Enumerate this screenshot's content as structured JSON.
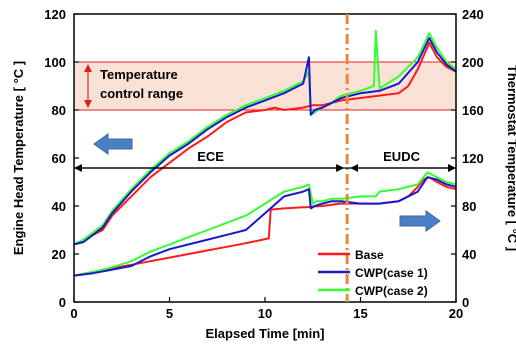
{
  "chart_data": {
    "type": "line",
    "xlabel": "Elapsed Time [min]",
    "ylabel_left": "Engine Head Temperature [ °C ]",
    "ylabel_right": "Thermostat Temperature [ °C ]",
    "xlim": [
      0,
      20
    ],
    "ylim_left": [
      0,
      120
    ],
    "ylim_right": [
      0,
      240
    ],
    "x_ticks": [
      "0",
      "5",
      "10",
      "15",
      "20"
    ],
    "y_ticks_left": [
      "0",
      "20",
      "40",
      "60",
      "80",
      "100",
      "120"
    ],
    "y_ticks_right": [
      "0",
      "40",
      "80",
      "120",
      "160",
      "200",
      "240"
    ],
    "legend_position": "lower-right",
    "grid": false,
    "control_range": {
      "label_line1": "Temperature",
      "label_line2": "control range",
      "low": 80,
      "high": 100,
      "color": "#f9e1d6"
    },
    "phases": [
      {
        "label": "ECE",
        "start": 0,
        "end": 14.3
      },
      {
        "label": "EUDC",
        "start": 14.3,
        "end": 20
      }
    ],
    "phase_divider_x": 14.3,
    "series": [
      {
        "name": "Base",
        "color": "#ff1a1a",
        "group": "lower",
        "x": [
          0,
          1,
          2,
          3,
          4,
          5,
          6,
          7,
          8,
          9,
          10.2,
          10.3,
          11,
          12,
          12.2,
          12.5,
          13,
          13.5,
          13.9,
          14.3,
          15,
          16,
          17,
          17.5,
          18,
          18.3,
          18.6,
          19,
          19.5,
          20
        ],
        "values": [
          11,
          12.5,
          14,
          15.5,
          17,
          18.5,
          20,
          21.5,
          23,
          24.5,
          26.5,
          38.5,
          39,
          39.5,
          39.5,
          39.8,
          40,
          40.5,
          41,
          41,
          41,
          41,
          42,
          44,
          48,
          51,
          52,
          50,
          48,
          47
        ]
      },
      {
        "name": "CWP(case 1)",
        "color": "#1a1acc",
        "group": "lower",
        "x": [
          0,
          1,
          2,
          3,
          4,
          5,
          6,
          7,
          8,
          9,
          10,
          11,
          12,
          12.3,
          12.4,
          12.6,
          13,
          13.5,
          14,
          15,
          16,
          17,
          18,
          18.5,
          19,
          19.5,
          20
        ],
        "values": [
          11,
          12,
          13.5,
          15,
          19,
          22,
          24,
          26,
          28,
          30,
          37,
          44,
          46,
          47,
          39,
          40,
          41,
          42,
          42,
          41,
          41,
          42,
          46,
          52,
          51,
          49,
          48
        ]
      },
      {
        "name": "CWP(case 2)",
        "color": "#33ff33",
        "group": "lower",
        "x": [
          0,
          1,
          2,
          3,
          4,
          5,
          6,
          7,
          8,
          9,
          10,
          11,
          12,
          12.3,
          12.5,
          12.7,
          13,
          13.5,
          14,
          15,
          15.8,
          16,
          17,
          18,
          18.5,
          19,
          19.5,
          20
        ],
        "values": [
          11,
          12.5,
          14.5,
          17,
          21,
          24,
          27,
          30,
          33,
          36,
          41,
          46,
          48,
          49,
          41,
          42,
          42,
          43,
          43,
          44,
          44,
          46,
          47,
          49,
          54,
          52,
          50,
          49
        ]
      },
      {
        "name": "Base",
        "color": "#ff1a1a",
        "group": "upper",
        "x": [
          0,
          0.5,
          1,
          1.5,
          2,
          3,
          4,
          5,
          6,
          7,
          8,
          9,
          10,
          10.5,
          11,
          12,
          12.5,
          13,
          13.5,
          14,
          15,
          16,
          17,
          17.5,
          18,
          18.6,
          19,
          19.5,
          20
        ],
        "values": [
          24,
          25,
          28,
          30,
          36,
          44,
          52,
          58,
          64,
          69,
          75,
          79,
          80,
          81,
          80,
          81,
          82,
          82,
          83,
          84,
          85,
          86,
          87,
          90,
          97,
          108,
          102,
          98,
          96
        ]
      },
      {
        "name": "CWP(case 1)",
        "color": "#1a1acc",
        "group": "upper",
        "x": [
          0,
          0.5,
          1,
          1.5,
          2,
          3,
          4,
          5,
          6,
          7,
          8,
          9,
          10,
          11,
          12,
          12.3,
          12.4,
          12.6,
          13,
          13.5,
          14,
          15,
          16,
          17,
          18,
          18.6,
          19,
          19.5,
          20
        ],
        "values": [
          24,
          25,
          28,
          31,
          37,
          46,
          54,
          61,
          66,
          72,
          77,
          81,
          84,
          87,
          91,
          102,
          78,
          80,
          81,
          83,
          85,
          87,
          88,
          91,
          100,
          110,
          104,
          99,
          96
        ]
      },
      {
        "name": "CWP(case 2)",
        "color": "#33ff33",
        "group": "upper",
        "x": [
          0,
          0.5,
          1,
          1.5,
          2,
          3,
          4,
          5,
          6,
          7,
          8,
          9,
          10,
          11,
          12,
          12.3,
          12.4,
          12.6,
          13,
          13.5,
          13.8,
          14,
          15,
          15.7,
          15.8,
          16,
          17,
          18,
          18.6,
          19,
          19.5,
          20
        ],
        "values": [
          24,
          26,
          29,
          32,
          38,
          47,
          55,
          62,
          67,
          73,
          78,
          82,
          85,
          88,
          92,
          96,
          78,
          79,
          81,
          83,
          85,
          86,
          88,
          90,
          113,
          89,
          94,
          102,
          112,
          106,
          100,
          97
        ]
      }
    ]
  }
}
